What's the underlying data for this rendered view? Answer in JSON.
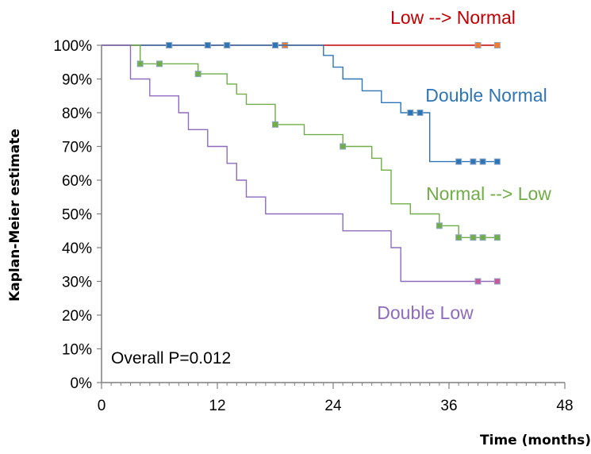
{
  "chart_data": {
    "type": "line",
    "step": true,
    "title": "",
    "xlabel": "Time (months)",
    "ylabel": "Kaplan-Meier estimate",
    "xlim": [
      0,
      48
    ],
    "ylim": [
      0,
      1
    ],
    "x_ticks": [
      0,
      12,
      24,
      36,
      48
    ],
    "x_tick_labels": [
      "0",
      "12",
      "24",
      "36",
      "48"
    ],
    "y_ticks": [
      0,
      0.1,
      0.2,
      0.3,
      0.4,
      0.5,
      0.6,
      0.7,
      0.8,
      0.9,
      1.0
    ],
    "y_tick_labels": [
      "0%",
      "10%",
      "20%",
      "30%",
      "40%",
      "50%",
      "60%",
      "70%",
      "80%",
      "90%",
      "100%"
    ],
    "grid": false,
    "annotation": "Overall P=0.012",
    "series": [
      {
        "name": "Low --> Normal",
        "color": "#c00000",
        "marker_color": "#ed7d31",
        "steps": [
          [
            0,
            1.0
          ],
          [
            41,
            1.0
          ]
        ],
        "censored": [
          [
            7,
            1.0
          ],
          [
            11,
            1.0
          ],
          [
            13,
            1.0
          ],
          [
            18,
            1.0
          ],
          [
            19,
            1.0
          ],
          [
            39,
            1.0
          ],
          [
            41,
            1.0
          ]
        ]
      },
      {
        "name": "Double Normal",
        "color": "#2e75b6",
        "marker_color": "#2e75b6",
        "steps": [
          [
            0,
            1.0
          ],
          [
            23,
            1.0
          ],
          [
            23,
            0.97
          ],
          [
            24,
            0.97
          ],
          [
            24,
            0.935
          ],
          [
            25,
            0.935
          ],
          [
            25,
            0.9
          ],
          [
            27,
            0.9
          ],
          [
            27,
            0.865
          ],
          [
            29,
            0.865
          ],
          [
            29,
            0.83
          ],
          [
            31,
            0.83
          ],
          [
            31,
            0.8
          ],
          [
            34,
            0.8
          ],
          [
            34,
            0.655
          ],
          [
            41,
            0.655
          ]
        ],
        "censored": [
          [
            7,
            1.0
          ],
          [
            11,
            1.0
          ],
          [
            13,
            1.0
          ],
          [
            18,
            1.0
          ],
          [
            32,
            0.8
          ],
          [
            33,
            0.8
          ],
          [
            37,
            0.655
          ],
          [
            38.5,
            0.655
          ],
          [
            39.5,
            0.655
          ],
          [
            41,
            0.655
          ]
        ]
      },
      {
        "name": "Normal --> Low",
        "color": "#70ad47",
        "marker_color": "#70ad47",
        "steps": [
          [
            0,
            1.0
          ],
          [
            4,
            1.0
          ],
          [
            4,
            0.945
          ],
          [
            10,
            0.945
          ],
          [
            10,
            0.915
          ],
          [
            13,
            0.915
          ],
          [
            13,
            0.885
          ],
          [
            14,
            0.885
          ],
          [
            14,
            0.855
          ],
          [
            15,
            0.855
          ],
          [
            15,
            0.825
          ],
          [
            18,
            0.825
          ],
          [
            18,
            0.765
          ],
          [
            21,
            0.765
          ],
          [
            21,
            0.735
          ],
          [
            25,
            0.735
          ],
          [
            25,
            0.7
          ],
          [
            28,
            0.7
          ],
          [
            28,
            0.665
          ],
          [
            29,
            0.665
          ],
          [
            29,
            0.63
          ],
          [
            30,
            0.63
          ],
          [
            30,
            0.53
          ],
          [
            32,
            0.53
          ],
          [
            32,
            0.5
          ],
          [
            35,
            0.5
          ],
          [
            35,
            0.465
          ],
          [
            37,
            0.465
          ],
          [
            37,
            0.43
          ],
          [
            41,
            0.43
          ]
        ],
        "censored": [
          [
            4,
            0.945
          ],
          [
            6,
            0.945
          ],
          [
            10,
            0.915
          ],
          [
            18,
            0.765
          ],
          [
            25,
            0.7
          ],
          [
            35,
            0.465
          ],
          [
            37,
            0.43
          ],
          [
            38.5,
            0.43
          ],
          [
            39.5,
            0.43
          ],
          [
            41,
            0.43
          ]
        ]
      },
      {
        "name": "Double Low",
        "color": "#8e6bbf",
        "marker_color": "#c55a9b",
        "steps": [
          [
            0,
            1.0
          ],
          [
            3,
            1.0
          ],
          [
            3,
            0.9
          ],
          [
            5,
            0.9
          ],
          [
            5,
            0.85
          ],
          [
            8,
            0.85
          ],
          [
            8,
            0.8
          ],
          [
            9,
            0.8
          ],
          [
            9,
            0.75
          ],
          [
            11,
            0.75
          ],
          [
            11,
            0.7
          ],
          [
            13,
            0.7
          ],
          [
            13,
            0.65
          ],
          [
            14,
            0.65
          ],
          [
            14,
            0.6
          ],
          [
            15,
            0.6
          ],
          [
            15,
            0.55
          ],
          [
            17,
            0.55
          ],
          [
            17,
            0.5
          ],
          [
            25,
            0.5
          ],
          [
            25,
            0.45
          ],
          [
            30,
            0.45
          ],
          [
            30,
            0.4
          ],
          [
            31,
            0.4
          ],
          [
            31,
            0.3
          ],
          [
            41,
            0.3
          ]
        ],
        "censored": [
          [
            39,
            0.3
          ],
          [
            41,
            0.3
          ]
        ]
      }
    ]
  }
}
